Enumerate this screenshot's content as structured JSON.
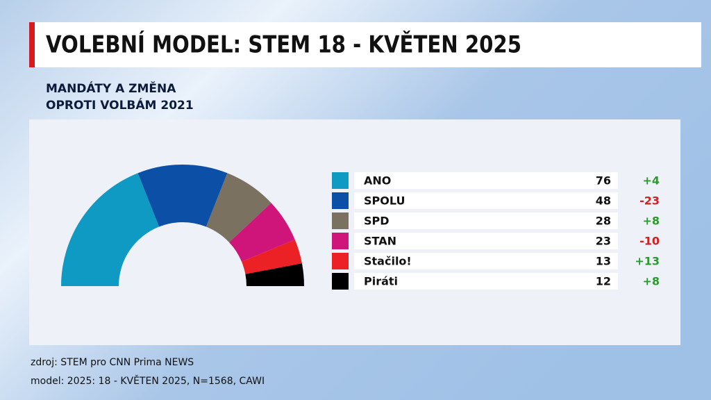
{
  "chart_data": {
    "type": "half-donut",
    "title": "VOLEBNÍ MODEL: STEM 18 - KVĚTEN 2025",
    "subtitle": [
      "MANDÁTY A ZMĚNA",
      "OPROTI VOLBÁM 2021"
    ],
    "categories": [
      "ANO",
      "SPOLU",
      "SPD",
      "STAN",
      "Stačilo!",
      "Piráti"
    ],
    "values": [
      76,
      48,
      28,
      23,
      13,
      12
    ],
    "colors": [
      "#0e9ac3",
      "#0b4fa6",
      "#7a7161",
      "#cf1579",
      "#ec2125",
      "#000000"
    ],
    "changes": {
      "values": [
        4,
        -23,
        8,
        -10,
        13,
        8
      ],
      "value_labels": [
        "+4",
        "-23",
        "+8",
        "-10",
        "+13",
        "+8"
      ]
    },
    "positive_color": "#2b9a2e",
    "negative_color": "#d3201f",
    "source": [
      "zdroj: STEM pro CNN Prima NEWS",
      "model: 2025: 18 - KVĚTEN 2025, N=1568, CAWI"
    ]
  }
}
